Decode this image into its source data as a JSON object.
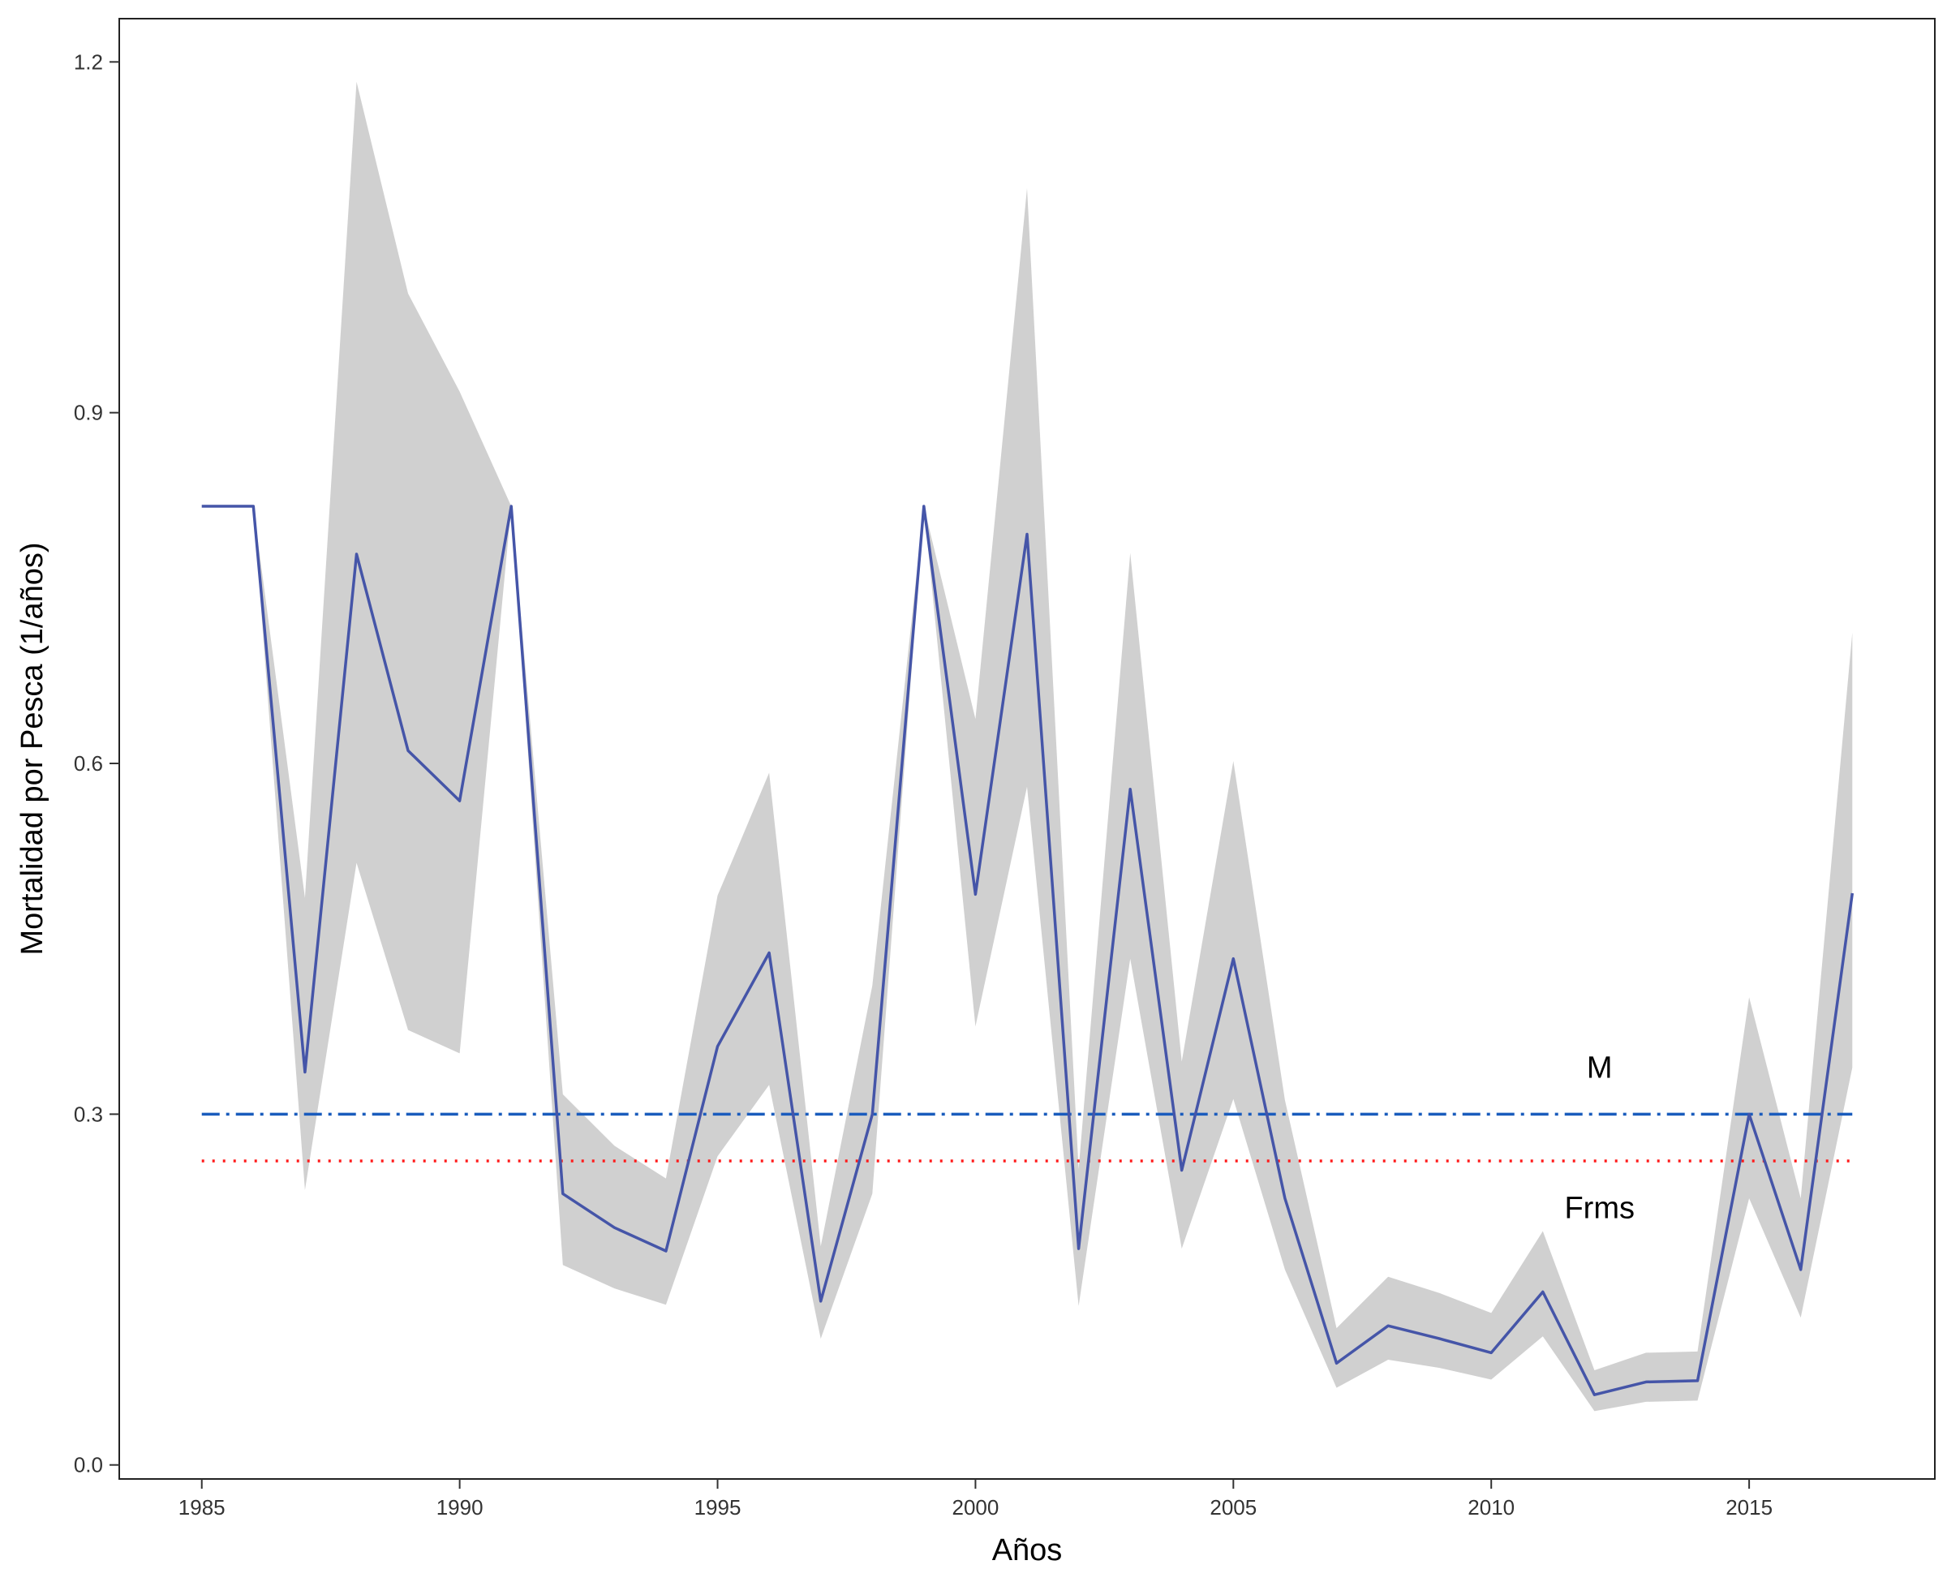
{
  "chart_data": {
    "type": "line",
    "title": "",
    "xlabel": "Años",
    "ylabel": "Mortalidad por Pesca (1/años)",
    "xlim": [
      1983.4,
      2018.6
    ],
    "ylim": [
      -0.012,
      1.237
    ],
    "xticks": [
      1985,
      1990,
      1995,
      2000,
      2005,
      2010,
      2015
    ],
    "yticks": [
      0.0,
      0.3,
      0.6,
      0.9,
      1.2
    ],
    "ytick_labels": [
      "0.0",
      "0.3",
      "0.6",
      "0.9",
      "1.2"
    ],
    "grid": false,
    "x": [
      1985,
      1986,
      1987,
      1988,
      1989,
      1990,
      1991,
      1992,
      1993,
      1994,
      1995,
      1996,
      1997,
      1998,
      1999,
      2000,
      2001,
      2002,
      2003,
      2004,
      2005,
      2006,
      2007,
      2008,
      2009,
      2010,
      2011,
      2012,
      2013,
      2014,
      2015,
      2016,
      2017
    ],
    "series": [
      {
        "values": [
          0.82,
          0.82,
          0.336,
          0.779,
          0.611,
          0.568,
          0.82,
          0.232,
          0.203,
          0.183,
          0.358,
          0.438,
          0.14,
          0.3,
          0.82,
          0.488,
          0.796,
          0.185,
          0.578,
          0.252,
          0.433,
          0.228,
          0.087,
          0.119,
          0.108,
          0.096,
          0.148,
          0.06,
          0.071,
          0.072,
          0.3,
          0.167,
          0.489
        ],
        "color": "#4555a8"
      }
    ],
    "band": {
      "lower": [
        0.82,
        0.82,
        0.235,
        0.515,
        0.372,
        0.352,
        0.82,
        0.171,
        0.151,
        0.137,
        0.264,
        0.325,
        0.108,
        0.232,
        0.82,
        0.375,
        0.58,
        0.136,
        0.433,
        0.185,
        0.313,
        0.167,
        0.066,
        0.09,
        0.083,
        0.073,
        0.11,
        0.046,
        0.054,
        0.055,
        0.228,
        0.126,
        0.34
      ],
      "upper": [
        0.82,
        0.82,
        0.485,
        1.183,
        1.002,
        0.918,
        0.82,
        0.317,
        0.273,
        0.245,
        0.487,
        0.592,
        0.187,
        0.41,
        0.82,
        0.638,
        1.092,
        0.253,
        0.78,
        0.345,
        0.602,
        0.312,
        0.117,
        0.161,
        0.147,
        0.13,
        0.2,
        0.081,
        0.096,
        0.097,
        0.4,
        0.228,
        0.712
      ],
      "color": "#d0d0d0"
    },
    "reference_lines": [
      {
        "label": "M",
        "value": 0.3,
        "style": "dash-dot",
        "color": "#1a5cbd",
        "label_x": 2012.1,
        "label_y": 0.34
      },
      {
        "label": "Frms",
        "value": 0.26,
        "style": "dotted",
        "color": "#ff1a1a",
        "label_x": 2012.1,
        "label_y": 0.22
      }
    ]
  }
}
